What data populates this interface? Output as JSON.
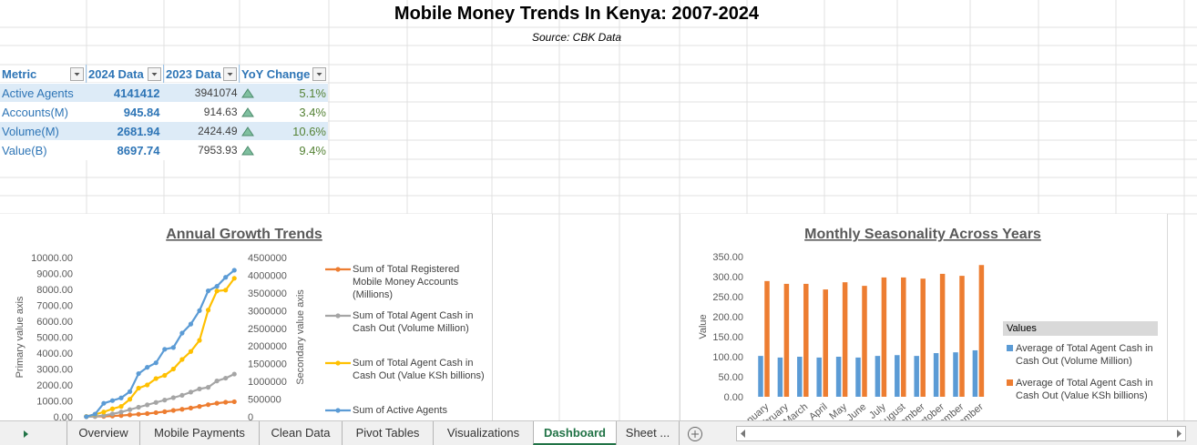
{
  "title": "Mobile Money Trends In Kenya: 2007-2024",
  "subtitle": "Source: CBK Data",
  "table": {
    "columns": [
      "Metric",
      "2024 Data",
      "2023 Data",
      "YoY Change"
    ],
    "rows": [
      [
        "Active Agents",
        4141412,
        3941074,
        "5.1%"
      ],
      [
        "Accounts(M)",
        945.84,
        914.63,
        "3.4%"
      ],
      [
        "Volume(M)",
        2681.94,
        2424.49,
        "10.6%"
      ],
      [
        "Value(B)",
        8697.74,
        7953.93,
        "9.4%"
      ]
    ]
  },
  "chart_data": [
    {
      "type": "line",
      "title": "Annual Growth Trends",
      "ylabel": "Primary value axis",
      "y2label": "Secondary value axis",
      "categories": [
        null,
        null,
        null,
        null,
        null,
        null,
        null,
        null,
        null,
        null,
        null,
        null,
        null,
        null,
        null,
        null,
        null,
        null
      ],
      "ylim": [
        0,
        10000
      ],
      "yticks": [
        {
          "value": 0,
          "label": "0.00"
        },
        {
          "value": 1000,
          "label": "1000.00"
        },
        {
          "value": 2000,
          "label": "2000.00"
        },
        {
          "value": 3000,
          "label": "3000.00"
        },
        {
          "value": 4000,
          "label": "4000.00"
        },
        {
          "value": 5000,
          "label": "5000.00"
        },
        {
          "value": 6000,
          "label": "6000.00"
        },
        {
          "value": 7000,
          "label": "7000.00"
        },
        {
          "value": 8000,
          "label": "8000.00"
        },
        {
          "value": 9000,
          "label": "9000.00"
        },
        {
          "value": 10000,
          "label": "10000.00"
        }
      ],
      "y2lim": [
        0,
        4500000
      ],
      "y2ticks": [
        0,
        500000,
        1000000,
        1500000,
        2000000,
        2500000,
        3000000,
        3500000,
        4000000,
        4500000
      ],
      "grid": false,
      "legend": "right",
      "series": [
        {
          "name": "Sum of Total Registered Mobile Money Accounts (Millions)",
          "color": "#ed7d31",
          "values": [
            10,
            20,
            30,
            50,
            80,
            120,
            160,
            200,
            260,
            320,
            400,
            470,
            550,
            650,
            760,
            850,
            914.63,
            945.84
          ]
        },
        {
          "name": "Sum of Total Agent Cash in Cash Out (Volume Million)",
          "color": "#a5a5a5",
          "values": [
            0,
            20,
            80,
            180,
            300,
            450,
            600,
            750,
            900,
            1050,
            1200,
            1350,
            1550,
            1750,
            1850,
            2250,
            2424.49,
            2681.94
          ]
        },
        {
          "name": "Sum of Total Agent Cash in Cash Out (Value KSh billions)",
          "color": "#ffc000",
          "values": [
            20,
            150,
            300,
            500,
            650,
            1100,
            1800,
            2000,
            2400,
            2600,
            3000,
            3600,
            4100,
            4800,
            6700,
            7900,
            7953.93,
            8697.74
          ]
        },
        {
          "name": "Sum of Active Agents",
          "color": "#5b9bd5",
          "axis": "y2",
          "values": [
            5000,
            76000,
            381000,
            458000,
            534000,
            712000,
            1220000,
            1398000,
            1525000,
            1907000,
            1958000,
            2365000,
            2619000,
            3000000,
            3559000,
            3686000,
            3941074,
            4141412
          ]
        }
      ]
    },
    {
      "type": "bar",
      "title": "Monthly Seasonality Across Years",
      "ylabel": "Value",
      "categories": [
        "January",
        "February",
        "March",
        "April",
        "May",
        "June",
        "July",
        "August",
        "September",
        "October",
        "November",
        "December"
      ],
      "ylim": [
        0,
        350
      ],
      "yticks": [
        {
          "value": 0,
          "label": "0.00"
        },
        {
          "value": 50,
          "label": "50.00"
        },
        {
          "value": 100,
          "label": "100.00"
        },
        {
          "value": 150,
          "label": "150.00"
        },
        {
          "value": 200,
          "label": "200.00"
        },
        {
          "value": 250,
          "label": "250.00"
        },
        {
          "value": 300,
          "label": "300.00"
        },
        {
          "value": 350,
          "label": "350.00"
        }
      ],
      "grid": false,
      "legend": "right",
      "legend_title": "Values",
      "series": [
        {
          "name": "Average of Total Agent Cash in Cash Out (Volume Million)",
          "color": "#5b9bd5",
          "values": [
            102,
            98,
            100,
            98,
            100,
            98,
            102,
            104,
            102,
            109,
            111,
            116
          ]
        },
        {
          "name": "Average of Total Agent Cash in Cash Out (Value KSh billions)",
          "color": "#ed7d31",
          "values": [
            289,
            282,
            282,
            268,
            286,
            277,
            298,
            298,
            295,
            307,
            302,
            329
          ]
        }
      ]
    }
  ],
  "tabs": {
    "items": [
      "Overview",
      "Mobile Payments",
      "Clean Data",
      "Pivot Tables",
      "Visualizations",
      "Dashboard",
      "Sheet ..."
    ],
    "active": 5
  }
}
